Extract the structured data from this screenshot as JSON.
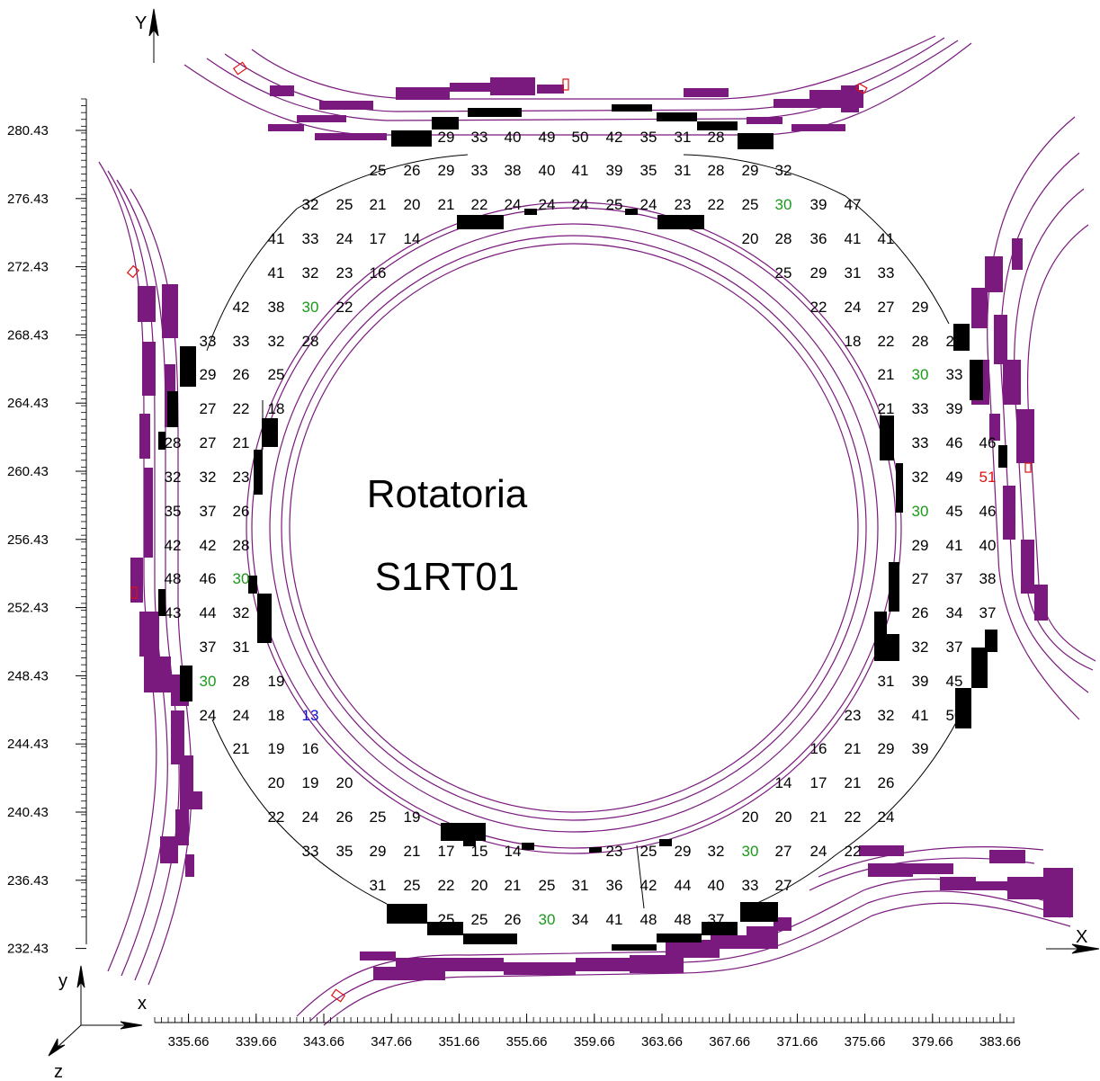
{
  "title": {
    "line1": "Rotatoria",
    "line2": "S1RT01"
  },
  "axes": {
    "y_label": "Y",
    "x_label": "X",
    "y_ticks": [
      "280.43",
      "276.43",
      "272.43",
      "268.43",
      "264.43",
      "260.43",
      "256.43",
      "252.43",
      "248.43",
      "244.43",
      "240.43",
      "236.43",
      "232.43"
    ],
    "x_ticks": [
      "335.66",
      "339.66",
      "343.66",
      "347.66",
      "351.66",
      "355.66",
      "359.66",
      "363.66",
      "367.66",
      "371.66",
      "375.66",
      "379.66",
      "383.66"
    ]
  },
  "triad": {
    "y": "y",
    "x": "x",
    "z": "z"
  },
  "colors": {
    "road": "#7a1a7e",
    "block": "#000000",
    "normal": "#000000",
    "highlight": "#1a9a1a",
    "low": "#1010d0",
    "high": "#e01010",
    "marker": "#e01010"
  },
  "grid": {
    "columns_x": [
      192,
      231,
      268,
      307,
      345,
      383,
      420,
      458,
      496,
      533,
      570,
      608,
      645,
      683,
      721,
      759,
      796,
      834,
      871,
      910,
      948,
      985,
      1023,
      1061,
      1098
    ],
    "rows": [
      {
        "y": 152,
        "cells": [
          {
            "c": 8,
            "v": "29"
          },
          {
            "c": 9,
            "v": "33"
          },
          {
            "c": 10,
            "v": "40"
          },
          {
            "c": 11,
            "v": "49"
          },
          {
            "c": 12,
            "v": "50"
          },
          {
            "c": 13,
            "v": "42"
          },
          {
            "c": 14,
            "v": "35"
          },
          {
            "c": 15,
            "v": "31"
          },
          {
            "c": 16,
            "v": "28"
          }
        ]
      },
      {
        "y": 189,
        "cells": [
          {
            "c": 6,
            "v": "25"
          },
          {
            "c": 7,
            "v": "26"
          },
          {
            "c": 8,
            "v": "29"
          },
          {
            "c": 9,
            "v": "33"
          },
          {
            "c": 10,
            "v": "38"
          },
          {
            "c": 11,
            "v": "40"
          },
          {
            "c": 12,
            "v": "41"
          },
          {
            "c": 13,
            "v": "39"
          },
          {
            "c": 14,
            "v": "35"
          },
          {
            "c": 15,
            "v": "31"
          },
          {
            "c": 16,
            "v": "28"
          },
          {
            "c": 17,
            "v": "29"
          },
          {
            "c": 18,
            "v": "32"
          }
        ]
      },
      {
        "y": 227,
        "cells": [
          {
            "c": 4,
            "v": "32"
          },
          {
            "c": 5,
            "v": "25"
          },
          {
            "c": 6,
            "v": "21"
          },
          {
            "c": 7,
            "v": "20"
          },
          {
            "c": 8,
            "v": "21"
          },
          {
            "c": 9,
            "v": "22"
          },
          {
            "c": 10,
            "v": "24"
          },
          {
            "c": 11,
            "v": "24"
          },
          {
            "c": 12,
            "v": "24"
          },
          {
            "c": 13,
            "v": "25"
          },
          {
            "c": 14,
            "v": "24"
          },
          {
            "c": 15,
            "v": "23"
          },
          {
            "c": 16,
            "v": "22"
          },
          {
            "c": 17,
            "v": "25"
          },
          {
            "c": 18,
            "v": "30",
            "k": "highlight"
          },
          {
            "c": 19,
            "v": "39"
          },
          {
            "c": 20,
            "v": "47"
          }
        ]
      },
      {
        "y": 265,
        "cells": [
          {
            "c": 3,
            "v": "41"
          },
          {
            "c": 4,
            "v": "33"
          },
          {
            "c": 5,
            "v": "24"
          },
          {
            "c": 6,
            "v": "17"
          },
          {
            "c": 7,
            "v": "14"
          },
          {
            "c": 17,
            "v": "20"
          },
          {
            "c": 18,
            "v": "28"
          },
          {
            "c": 19,
            "v": "36"
          },
          {
            "c": 20,
            "v": "41"
          },
          {
            "c": 21,
            "v": "41"
          }
        ]
      },
      {
        "y": 303,
        "cells": [
          {
            "c": 3,
            "v": "41"
          },
          {
            "c": 4,
            "v": "32"
          },
          {
            "c": 5,
            "v": "23"
          },
          {
            "c": 6,
            "v": "16"
          },
          {
            "c": 18,
            "v": "25"
          },
          {
            "c": 19,
            "v": "29"
          },
          {
            "c": 20,
            "v": "31"
          },
          {
            "c": 21,
            "v": "33"
          }
        ]
      },
      {
        "y": 341,
        "cells": [
          {
            "c": 2,
            "v": "42"
          },
          {
            "c": 3,
            "v": "38"
          },
          {
            "c": 4,
            "v": "30",
            "k": "highlight"
          },
          {
            "c": 5,
            "v": "22"
          },
          {
            "c": 19,
            "v": "22"
          },
          {
            "c": 20,
            "v": "24"
          },
          {
            "c": 21,
            "v": "27"
          },
          {
            "c": 22,
            "v": "29"
          }
        ]
      },
      {
        "y": 379,
        "cells": [
          {
            "c": 1,
            "v": "33"
          },
          {
            "c": 2,
            "v": "33"
          },
          {
            "c": 3,
            "v": "32"
          },
          {
            "c": 4,
            "v": "28"
          },
          {
            "c": 20,
            "v": "18"
          },
          {
            "c": 21,
            "v": "22"
          },
          {
            "c": 22,
            "v": "28"
          },
          {
            "c": 23,
            "v": "28"
          }
        ]
      },
      {
        "y": 416,
        "cells": [
          {
            "c": 1,
            "v": "29"
          },
          {
            "c": 2,
            "v": "26"
          },
          {
            "c": 3,
            "v": "25"
          },
          {
            "c": 21,
            "v": "21"
          },
          {
            "c": 22,
            "v": "30",
            "k": "highlight"
          },
          {
            "c": 23,
            "v": "33"
          }
        ]
      },
      {
        "y": 454,
        "cells": [
          {
            "c": 1,
            "v": "27"
          },
          {
            "c": 2,
            "v": "22"
          },
          {
            "c": 3,
            "v": "18"
          },
          {
            "c": 21,
            "v": "21"
          },
          {
            "c": 22,
            "v": "33"
          },
          {
            "c": 23,
            "v": "39"
          }
        ]
      },
      {
        "y": 492,
        "cells": [
          {
            "c": 0,
            "v": "28"
          },
          {
            "c": 1,
            "v": "27"
          },
          {
            "c": 2,
            "v": "21"
          },
          {
            "c": 22,
            "v": "33"
          },
          {
            "c": 23,
            "v": "46"
          },
          {
            "c": 24,
            "v": "46"
          }
        ]
      },
      {
        "y": 530,
        "cells": [
          {
            "c": 0,
            "v": "32"
          },
          {
            "c": 1,
            "v": "32"
          },
          {
            "c": 2,
            "v": "23"
          },
          {
            "c": 22,
            "v": "32"
          },
          {
            "c": 23,
            "v": "49"
          },
          {
            "c": 24,
            "v": "51",
            "k": "high"
          }
        ]
      },
      {
        "y": 568,
        "cells": [
          {
            "c": 0,
            "v": "35"
          },
          {
            "c": 1,
            "v": "37"
          },
          {
            "c": 2,
            "v": "26"
          },
          {
            "c": 22,
            "v": "30",
            "k": "highlight"
          },
          {
            "c": 23,
            "v": "45"
          },
          {
            "c": 24,
            "v": "46"
          }
        ]
      },
      {
        "y": 606,
        "cells": [
          {
            "c": 0,
            "v": "42"
          },
          {
            "c": 1,
            "v": "42"
          },
          {
            "c": 2,
            "v": "28"
          },
          {
            "c": 22,
            "v": "29"
          },
          {
            "c": 23,
            "v": "41"
          },
          {
            "c": 24,
            "v": "40"
          }
        ]
      },
      {
        "y": 643,
        "cells": [
          {
            "c": 0,
            "v": "48"
          },
          {
            "c": 1,
            "v": "46"
          },
          {
            "c": 2,
            "v": "30",
            "k": "highlight"
          },
          {
            "c": 22,
            "v": "27"
          },
          {
            "c": 23,
            "v": "37"
          },
          {
            "c": 24,
            "v": "38"
          }
        ]
      },
      {
        "y": 681,
        "cells": [
          {
            "c": 0,
            "v": "43"
          },
          {
            "c": 1,
            "v": "44"
          },
          {
            "c": 2,
            "v": "32"
          },
          {
            "c": 22,
            "v": "26"
          },
          {
            "c": 23,
            "v": "34"
          },
          {
            "c": 24,
            "v": "37"
          }
        ]
      },
      {
        "y": 719,
        "cells": [
          {
            "c": 1,
            "v": "37"
          },
          {
            "c": 2,
            "v": "31"
          },
          {
            "c": 21,
            "v": "26"
          },
          {
            "c": 22,
            "v": "32"
          },
          {
            "c": 23,
            "v": "37"
          }
        ]
      },
      {
        "y": 757,
        "cells": [
          {
            "c": 1,
            "v": "30",
            "k": "highlight"
          },
          {
            "c": 2,
            "v": "28"
          },
          {
            "c": 3,
            "v": "19"
          },
          {
            "c": 21,
            "v": "31"
          },
          {
            "c": 22,
            "v": "39"
          },
          {
            "c": 23,
            "v": "45"
          }
        ]
      },
      {
        "y": 795,
        "cells": [
          {
            "c": 1,
            "v": "24"
          },
          {
            "c": 2,
            "v": "24"
          },
          {
            "c": 3,
            "v": "18"
          },
          {
            "c": 4,
            "v": "13",
            "k": "low"
          },
          {
            "c": 20,
            "v": "23"
          },
          {
            "c": 21,
            "v": "32"
          },
          {
            "c": 22,
            "v": "41"
          },
          {
            "c": 23,
            "v": "50"
          }
        ]
      },
      {
        "y": 832,
        "cells": [
          {
            "c": 2,
            "v": "21"
          },
          {
            "c": 3,
            "v": "19"
          },
          {
            "c": 4,
            "v": "16"
          },
          {
            "c": 19,
            "v": "16"
          },
          {
            "c": 20,
            "v": "21"
          },
          {
            "c": 21,
            "v": "29"
          },
          {
            "c": 22,
            "v": "39"
          }
        ]
      },
      {
        "y": 870,
        "cells": [
          {
            "c": 3,
            "v": "20"
          },
          {
            "c": 4,
            "v": "19"
          },
          {
            "c": 5,
            "v": "20"
          },
          {
            "c": 18,
            "v": "14"
          },
          {
            "c": 19,
            "v": "17"
          },
          {
            "c": 20,
            "v": "21"
          },
          {
            "c": 21,
            "v": "26"
          }
        ]
      },
      {
        "y": 908,
        "cells": [
          {
            "c": 3,
            "v": "22"
          },
          {
            "c": 4,
            "v": "24"
          },
          {
            "c": 5,
            "v": "26"
          },
          {
            "c": 6,
            "v": "25"
          },
          {
            "c": 7,
            "v": "19"
          },
          {
            "c": 17,
            "v": "20"
          },
          {
            "c": 18,
            "v": "20"
          },
          {
            "c": 19,
            "v": "21"
          },
          {
            "c": 20,
            "v": "22"
          },
          {
            "c": 21,
            "v": "24"
          }
        ]
      },
      {
        "y": 946,
        "cells": [
          {
            "c": 4,
            "v": "33"
          },
          {
            "c": 5,
            "v": "35"
          },
          {
            "c": 6,
            "v": "29"
          },
          {
            "c": 7,
            "v": "21"
          },
          {
            "c": 8,
            "v": "17"
          },
          {
            "c": 9,
            "v": "15"
          },
          {
            "c": 10,
            "v": "14"
          },
          {
            "c": 13,
            "v": "23"
          },
          {
            "c": 14,
            "v": "25"
          },
          {
            "c": 15,
            "v": "29"
          },
          {
            "c": 16,
            "v": "32"
          },
          {
            "c": 17,
            "v": "30",
            "k": "highlight"
          },
          {
            "c": 18,
            "v": "27"
          },
          {
            "c": 19,
            "v": "24"
          },
          {
            "c": 20,
            "v": "22"
          }
        ]
      },
      {
        "y": 984,
        "cells": [
          {
            "c": 6,
            "v": "31"
          },
          {
            "c": 7,
            "v": "25"
          },
          {
            "c": 8,
            "v": "22"
          },
          {
            "c": 9,
            "v": "20"
          },
          {
            "c": 10,
            "v": "21"
          },
          {
            "c": 11,
            "v": "25"
          },
          {
            "c": 12,
            "v": "31"
          },
          {
            "c": 13,
            "v": "36"
          },
          {
            "c": 14,
            "v": "42"
          },
          {
            "c": 15,
            "v": "44"
          },
          {
            "c": 16,
            "v": "40"
          },
          {
            "c": 17,
            "v": "33"
          },
          {
            "c": 18,
            "v": "27"
          }
        ]
      },
      {
        "y": 1022,
        "cells": [
          {
            "c": 8,
            "v": "25"
          },
          {
            "c": 9,
            "v": "25"
          },
          {
            "c": 10,
            "v": "26"
          },
          {
            "c": 11,
            "v": "30",
            "k": "highlight"
          },
          {
            "c": 12,
            "v": "34"
          },
          {
            "c": 13,
            "v": "41"
          },
          {
            "c": 14,
            "v": "48"
          },
          {
            "c": 15,
            "v": "48"
          },
          {
            "c": 16,
            "v": "37"
          }
        ]
      }
    ]
  }
}
